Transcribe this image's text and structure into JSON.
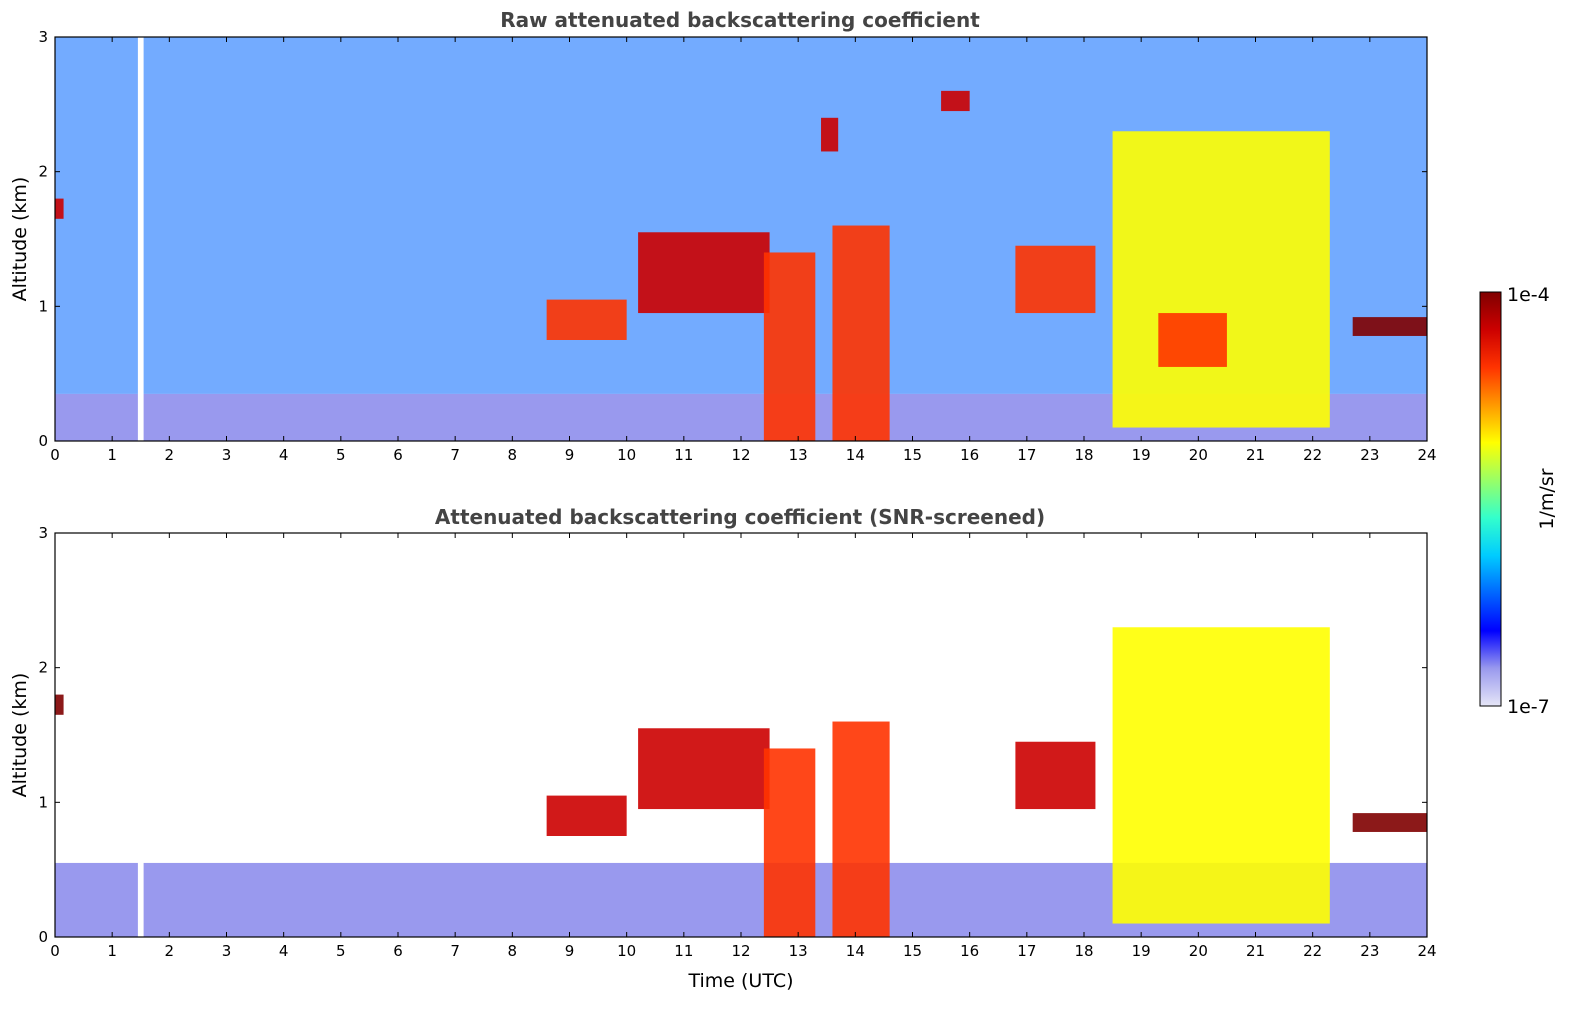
{
  "chart_data": [
    {
      "type": "heatmap",
      "title": "Raw attenuated backscattering coefficient",
      "xlabel": "",
      "ylabel": "Altitude (km)",
      "xlim": [
        0,
        24
      ],
      "ylim": [
        0,
        3
      ],
      "xticks": [
        "0",
        "1",
        "2",
        "3",
        "4",
        "5",
        "6",
        "7",
        "8",
        "9",
        "10",
        "11",
        "12",
        "13",
        "14",
        "15",
        "16",
        "17",
        "18",
        "19",
        "20",
        "21",
        "22",
        "23",
        "24"
      ],
      "yticks": [
        "0",
        "1",
        "2",
        "3"
      ],
      "features": [
        {
          "kind": "boundary_layer",
          "x": [
            0,
            24
          ],
          "top": 0.35,
          "level": 0.12
        },
        {
          "kind": "noise_background",
          "x": [
            0,
            24
          ],
          "y": [
            0.35,
            3
          ],
          "level": 0.3
        },
        {
          "kind": "data_gap",
          "x": [
            1.45,
            1.55
          ]
        },
        {
          "kind": "cloud",
          "x": [
            0,
            0.15
          ],
          "y": [
            1.65,
            1.8
          ],
          "level": 0.95
        },
        {
          "kind": "cloud",
          "x": [
            8.6,
            10.0
          ],
          "y": [
            0.75,
            1.05
          ],
          "level": 0.85
        },
        {
          "kind": "cloud",
          "x": [
            10.2,
            12.5
          ],
          "y": [
            0.95,
            1.55
          ],
          "level": 0.9
        },
        {
          "kind": "cloud",
          "x": [
            12.4,
            13.3
          ],
          "y": [
            0.0,
            1.4
          ],
          "level": 0.8
        },
        {
          "kind": "cloud",
          "x": [
            13.6,
            14.6
          ],
          "y": [
            0.0,
            1.6
          ],
          "level": 0.8
        },
        {
          "kind": "cloud",
          "x": [
            16.8,
            18.2
          ],
          "y": [
            0.95,
            1.45
          ],
          "level": 0.85
        },
        {
          "kind": "cloud",
          "x": [
            18.5,
            22.3
          ],
          "y": [
            0.1,
            2.3
          ],
          "level": 0.65
        },
        {
          "kind": "cloud",
          "x": [
            19.3,
            20.5
          ],
          "y": [
            0.55,
            0.95
          ],
          "level": 0.78
        },
        {
          "kind": "cloud",
          "x": [
            22.7,
            24
          ],
          "y": [
            0.78,
            0.92
          ],
          "level": 0.97
        },
        {
          "kind": "cloud",
          "x": [
            13.4,
            13.7
          ],
          "y": [
            2.15,
            2.4
          ],
          "level": 0.92
        },
        {
          "kind": "cloud",
          "x": [
            15.5,
            16.0
          ],
          "y": [
            2.45,
            2.6
          ],
          "level": 0.92
        }
      ]
    },
    {
      "type": "heatmap",
      "title": "Attenuated backscattering coefficient (SNR-screened)",
      "xlabel": "Time (UTC)",
      "ylabel": "Altitude (km)",
      "xlim": [
        0,
        24
      ],
      "ylim": [
        0,
        3
      ],
      "xticks": [
        "0",
        "1",
        "2",
        "3",
        "4",
        "5",
        "6",
        "7",
        "8",
        "9",
        "10",
        "11",
        "12",
        "13",
        "14",
        "15",
        "16",
        "17",
        "18",
        "19",
        "20",
        "21",
        "22",
        "23",
        "24"
      ],
      "yticks": [
        "0",
        "1",
        "2",
        "3"
      ],
      "features": [
        {
          "kind": "boundary_layer",
          "x": [
            0,
            24
          ],
          "top": 0.55,
          "level": 0.12
        },
        {
          "kind": "data_gap",
          "x": [
            1.45,
            1.55
          ]
        },
        {
          "kind": "cloud",
          "x": [
            0,
            0.15
          ],
          "y": [
            1.65,
            1.8
          ],
          "level": 1.0
        },
        {
          "kind": "cloud",
          "x": [
            8.6,
            10.0
          ],
          "y": [
            0.75,
            1.05
          ],
          "level": 0.95
        },
        {
          "kind": "cloud",
          "x": [
            10.2,
            12.5
          ],
          "y": [
            0.95,
            1.55
          ],
          "level": 0.95
        },
        {
          "kind": "cloud",
          "x": [
            12.4,
            13.3
          ],
          "y": [
            0.0,
            1.4
          ],
          "level": 0.8
        },
        {
          "kind": "cloud",
          "x": [
            13.6,
            14.6
          ],
          "y": [
            0.0,
            1.6
          ],
          "level": 0.8
        },
        {
          "kind": "cloud",
          "x": [
            16.8,
            18.2
          ],
          "y": [
            0.95,
            1.45
          ],
          "level": 0.9
        },
        {
          "kind": "cloud",
          "x": [
            18.5,
            22.3
          ],
          "y": [
            0.1,
            2.3
          ],
          "level": 0.65
        },
        {
          "kind": "cloud",
          "x": [
            22.7,
            24
          ],
          "y": [
            0.78,
            0.92
          ],
          "level": 1.0
        }
      ]
    }
  ],
  "colorbar": {
    "label": "1/m/sr",
    "max_label": "1e-4",
    "min_label": "1e-7",
    "stops": [
      "#e6e6f7",
      "#9999ee",
      "#0000ff",
      "#0066ff",
      "#00ccff",
      "#33ffcc",
      "#99ff66",
      "#ffff00",
      "#ff9900",
      "#ff3300",
      "#cc0000",
      "#800000"
    ]
  }
}
